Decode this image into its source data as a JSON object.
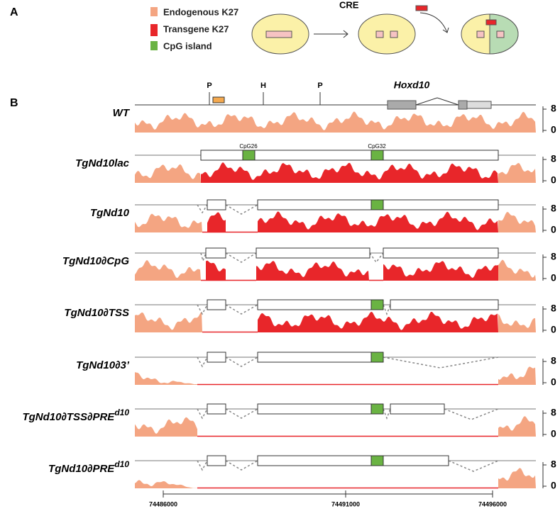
{
  "panel_labels": [
    "A",
    "B"
  ],
  "legend": [
    {
      "label": "Endogenous K27",
      "color": "#f4a582"
    },
    {
      "label": "Transgene K27",
      "color": "#e8262a"
    },
    {
      "label": "CpG island",
      "color": "#6ab343"
    }
  ],
  "schematic": {
    "step_label": "CRE"
  },
  "gene_map": {
    "sites": [
      "P",
      "H",
      "P"
    ],
    "gene": "Hoxd10"
  },
  "cpg_labels": [
    "CpG26",
    "CpG32"
  ],
  "tracks": [
    {
      "name": "WT",
      "sup": null
    },
    {
      "name": "TgNd10lac",
      "sup": null
    },
    {
      "name": "TgNd10",
      "sup": null
    },
    {
      "name": "TgNd10∂CpG",
      "sup": null
    },
    {
      "name": "TgNd10∂TSS",
      "sup": null
    },
    {
      "name": "TgNd10∂3’",
      "sup": null
    },
    {
      "name": "TgNd10∂TSS∂PRE",
      "sup": "d10"
    },
    {
      "name": "TgNd10∂PRE",
      "sup": "d10"
    }
  ],
  "y_scale": [
    8,
    0
  ],
  "x_axis": {
    "ticks": [
      74486000,
      74491000,
      74496000
    ]
  }
}
